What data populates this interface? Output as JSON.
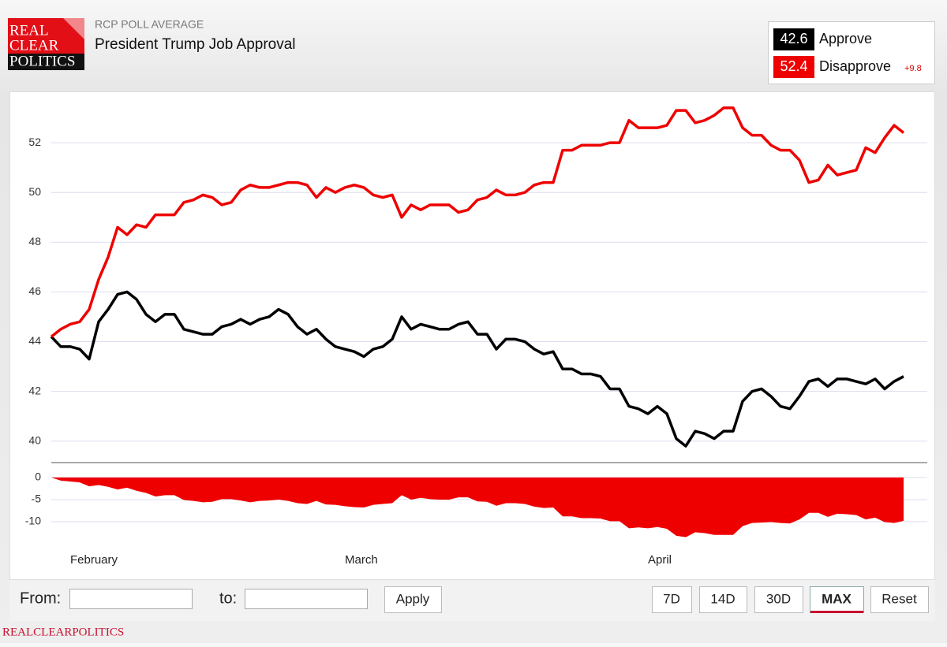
{
  "header": {
    "logo": [
      "REAL",
      "CLEAR",
      "POLITICS"
    ]
  },
  "chart_data": [
    {
      "type": "line",
      "subtitle": "RCP POLL AVERAGE",
      "title": "President Trump Job Approval",
      "categories": [
        null,
        null,
        "February",
        null,
        null,
        null,
        null,
        null,
        null,
        null,
        null,
        null,
        null,
        null,
        null,
        null,
        null,
        null,
        null,
        null,
        null,
        null,
        null,
        null,
        null,
        null,
        null,
        null,
        null,
        null,
        null,
        "March",
        null,
        null,
        null,
        null,
        null,
        null,
        null,
        null,
        null,
        null,
        null,
        null,
        null,
        null,
        null,
        null,
        null,
        null,
        null,
        null,
        null,
        null,
        null,
        null,
        null,
        null,
        null,
        null,
        null,
        null,
        null,
        "April",
        null,
        null,
        null,
        null,
        null,
        null,
        null,
        null,
        null,
        null,
        null,
        null,
        null,
        null,
        null,
        null,
        null,
        null,
        null,
        null,
        null,
        null,
        null,
        null,
        null,
        null,
        null
      ],
      "series": [
        {
          "name": "Approve",
          "color": "#000000",
          "current": 42.6,
          "values": [
            44.2,
            43.8,
            43.8,
            43.7,
            43.3,
            44.8,
            45.3,
            45.9,
            46.0,
            45.7,
            45.1,
            44.8,
            45.1,
            45.1,
            44.5,
            44.4,
            44.3,
            44.3,
            44.6,
            44.7,
            44.9,
            44.7,
            44.9,
            45.0,
            45.3,
            45.1,
            44.6,
            44.3,
            44.5,
            44.1,
            43.8,
            43.7,
            43.6,
            43.4,
            43.7,
            43.8,
            44.1,
            45.0,
            44.5,
            44.7,
            44.6,
            44.5,
            44.5,
            44.7,
            44.8,
            44.3,
            44.3,
            43.7,
            44.1,
            44.1,
            44.0,
            43.7,
            43.5,
            43.6,
            42.9,
            42.9,
            42.7,
            42.7,
            42.6,
            42.1,
            42.1,
            41.4,
            41.3,
            41.1,
            41.4,
            41.1,
            40.1,
            39.8,
            40.4,
            40.3,
            40.1,
            40.4,
            40.4,
            41.6,
            42.0,
            42.1,
            41.8,
            41.4,
            41.3,
            41.8,
            42.4,
            42.5,
            42.2,
            42.5,
            42.5,
            42.4,
            42.3,
            42.5,
            42.1,
            42.4,
            42.6
          ]
        },
        {
          "name": "Disapprove",
          "color": "#ee0000",
          "current": 52.4,
          "margin_label": "+9.8",
          "values": [
            44.2,
            44.5,
            44.7,
            44.8,
            45.3,
            46.5,
            47.4,
            48.6,
            48.3,
            48.7,
            48.6,
            49.1,
            49.1,
            49.1,
            49.6,
            49.7,
            49.9,
            49.8,
            49.5,
            49.6,
            50.1,
            50.3,
            50.2,
            50.2,
            50.3,
            50.4,
            50.4,
            50.3,
            49.8,
            50.2,
            50.0,
            50.2,
            50.3,
            50.2,
            49.9,
            49.8,
            49.9,
            49.0,
            49.5,
            49.3,
            49.5,
            49.5,
            49.5,
            49.2,
            49.3,
            49.7,
            49.8,
            50.1,
            49.9,
            49.9,
            50.0,
            50.3,
            50.4,
            50.4,
            51.7,
            51.7,
            51.9,
            51.9,
            51.9,
            52.0,
            52.0,
            52.9,
            52.6,
            52.6,
            52.6,
            52.7,
            53.3,
            53.3,
            52.8,
            52.9,
            53.1,
            53.4,
            53.4,
            52.6,
            52.3,
            52.3,
            51.9,
            51.7,
            51.7,
            51.3,
            50.4,
            50.5,
            51.1,
            50.7,
            50.8,
            50.9,
            51.8,
            51.6,
            52.2,
            52.7,
            52.4
          ]
        }
      ],
      "ylim": [
        39.2,
        54.0
      ],
      "yticks": [
        40,
        42,
        44,
        46,
        48,
        50,
        52
      ],
      "grid": true
    },
    {
      "type": "area",
      "color": "#ee0000",
      "values": [
        0,
        -0.7,
        -0.9,
        -1.1,
        -2.0,
        -1.7,
        -2.1,
        -2.7,
        -2.3,
        -3.0,
        -3.5,
        -4.3,
        -4.0,
        -4.0,
        -5.1,
        -5.3,
        -5.6,
        -5.5,
        -4.9,
        -4.9,
        -5.2,
        -5.6,
        -5.3,
        -5.2,
        -5.0,
        -5.3,
        -5.8,
        -6.0,
        -5.3,
        -6.1,
        -6.2,
        -6.5,
        -6.7,
        -6.8,
        -6.2,
        -6.0,
        -5.8,
        -4.0,
        -5.0,
        -4.6,
        -4.9,
        -5.0,
        -5.0,
        -4.5,
        -4.5,
        -5.4,
        -5.5,
        -6.4,
        -5.8,
        -5.8,
        -6.0,
        -6.6,
        -6.9,
        -6.8,
        -8.8,
        -8.8,
        -9.2,
        -9.2,
        -9.3,
        -9.9,
        -9.9,
        -11.5,
        -11.3,
        -11.5,
        -11.2,
        -11.6,
        -13.2,
        -13.5,
        -12.4,
        -12.6,
        -13.0,
        -13.0,
        -13.0,
        -11.0,
        -10.3,
        -10.2,
        -10.1,
        -10.3,
        -10.4,
        -9.5,
        -8.0,
        -8.0,
        -8.9,
        -8.2,
        -8.3,
        -8.5,
        -9.5,
        -9.1,
        -10.1,
        -10.3,
        -9.8
      ],
      "ylim": [
        -15.0,
        3.2
      ],
      "yticks": [
        0,
        -5,
        -10
      ],
      "grid": true
    }
  ],
  "controls": {
    "from": "From:",
    "to": "to:",
    "apply": "Apply",
    "ranges": [
      "7D",
      "14D",
      "30D",
      "MAX",
      "Reset"
    ]
  },
  "footer": "REALCLEARPOLITICS"
}
